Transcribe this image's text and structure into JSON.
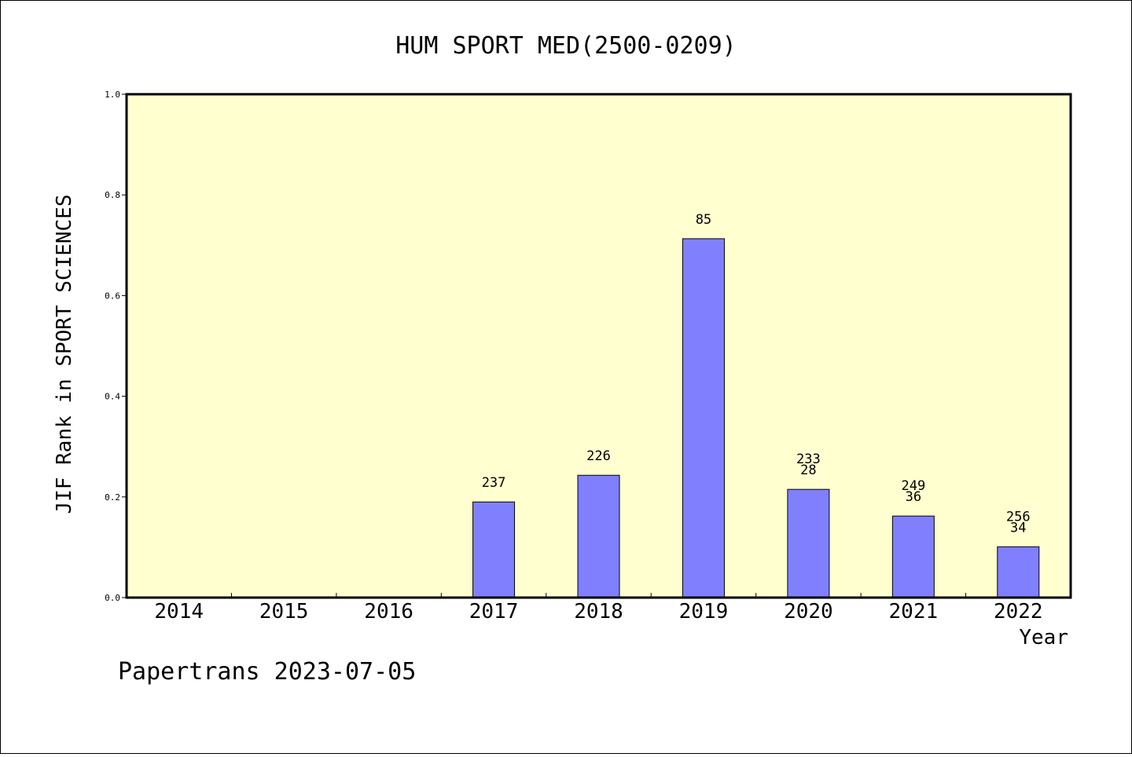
{
  "chart_data": {
    "type": "bar",
    "title": "HUM SPORT MED(2500-0209)",
    "xlabel": "Year",
    "ylabel": "JIF Rank in SPORT SCIENCES",
    "ylim": [
      0,
      1.0
    ],
    "yticks": [
      "0.0",
      "0.2",
      "0.4",
      "0.6",
      "0.8",
      "1.0"
    ],
    "categories": [
      "2014",
      "2015",
      "2016",
      "2017",
      "2018",
      "2019",
      "2020",
      "2021",
      "2022"
    ],
    "values": [
      null,
      null,
      null,
      0.19,
      0.243,
      0.713,
      0.215,
      0.162,
      0.101
    ],
    "bar_labels": [
      [],
      [],
      [],
      [
        "237"
      ],
      [
        "226"
      ],
      [
        "85"
      ],
      [
        "233",
        "28"
      ],
      [
        "249",
        "36"
      ],
      [
        "256",
        "34"
      ]
    ],
    "grid": false,
    "plot_background": "#ffffd0",
    "bar_color": "#8080ff"
  },
  "footer": {
    "text": "Papertrans 2023-07-05"
  }
}
